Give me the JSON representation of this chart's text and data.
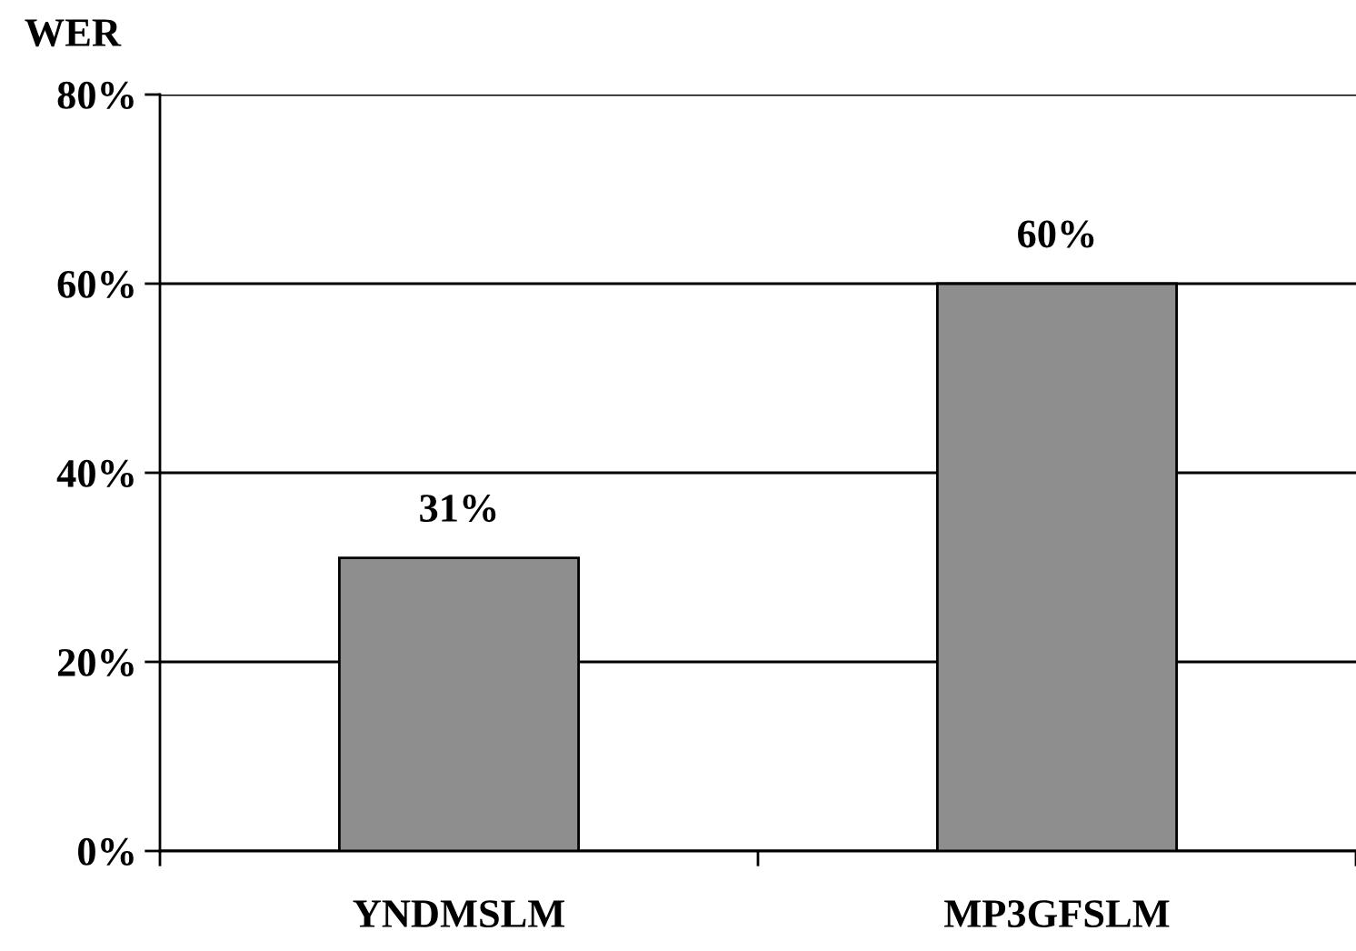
{
  "chart_data": {
    "type": "bar",
    "ylabel": "WER",
    "categories": [
      "YNDMSLM",
      "MP3GFSLM"
    ],
    "values": [
      31,
      60
    ],
    "color": "#8e8e8e",
    "value_labels": [
      "31%",
      "60%"
    ],
    "ylim": [
      0,
      80
    ],
    "yticks": [
      {
        "value": 0,
        "label": "0%"
      },
      {
        "value": 20,
        "label": "20%"
      },
      {
        "value": 40,
        "label": "40%"
      },
      {
        "value": 60,
        "label": "60%"
      },
      {
        "value": 80,
        "label": "80%"
      }
    ],
    "grid": "y",
    "legend": false
  }
}
